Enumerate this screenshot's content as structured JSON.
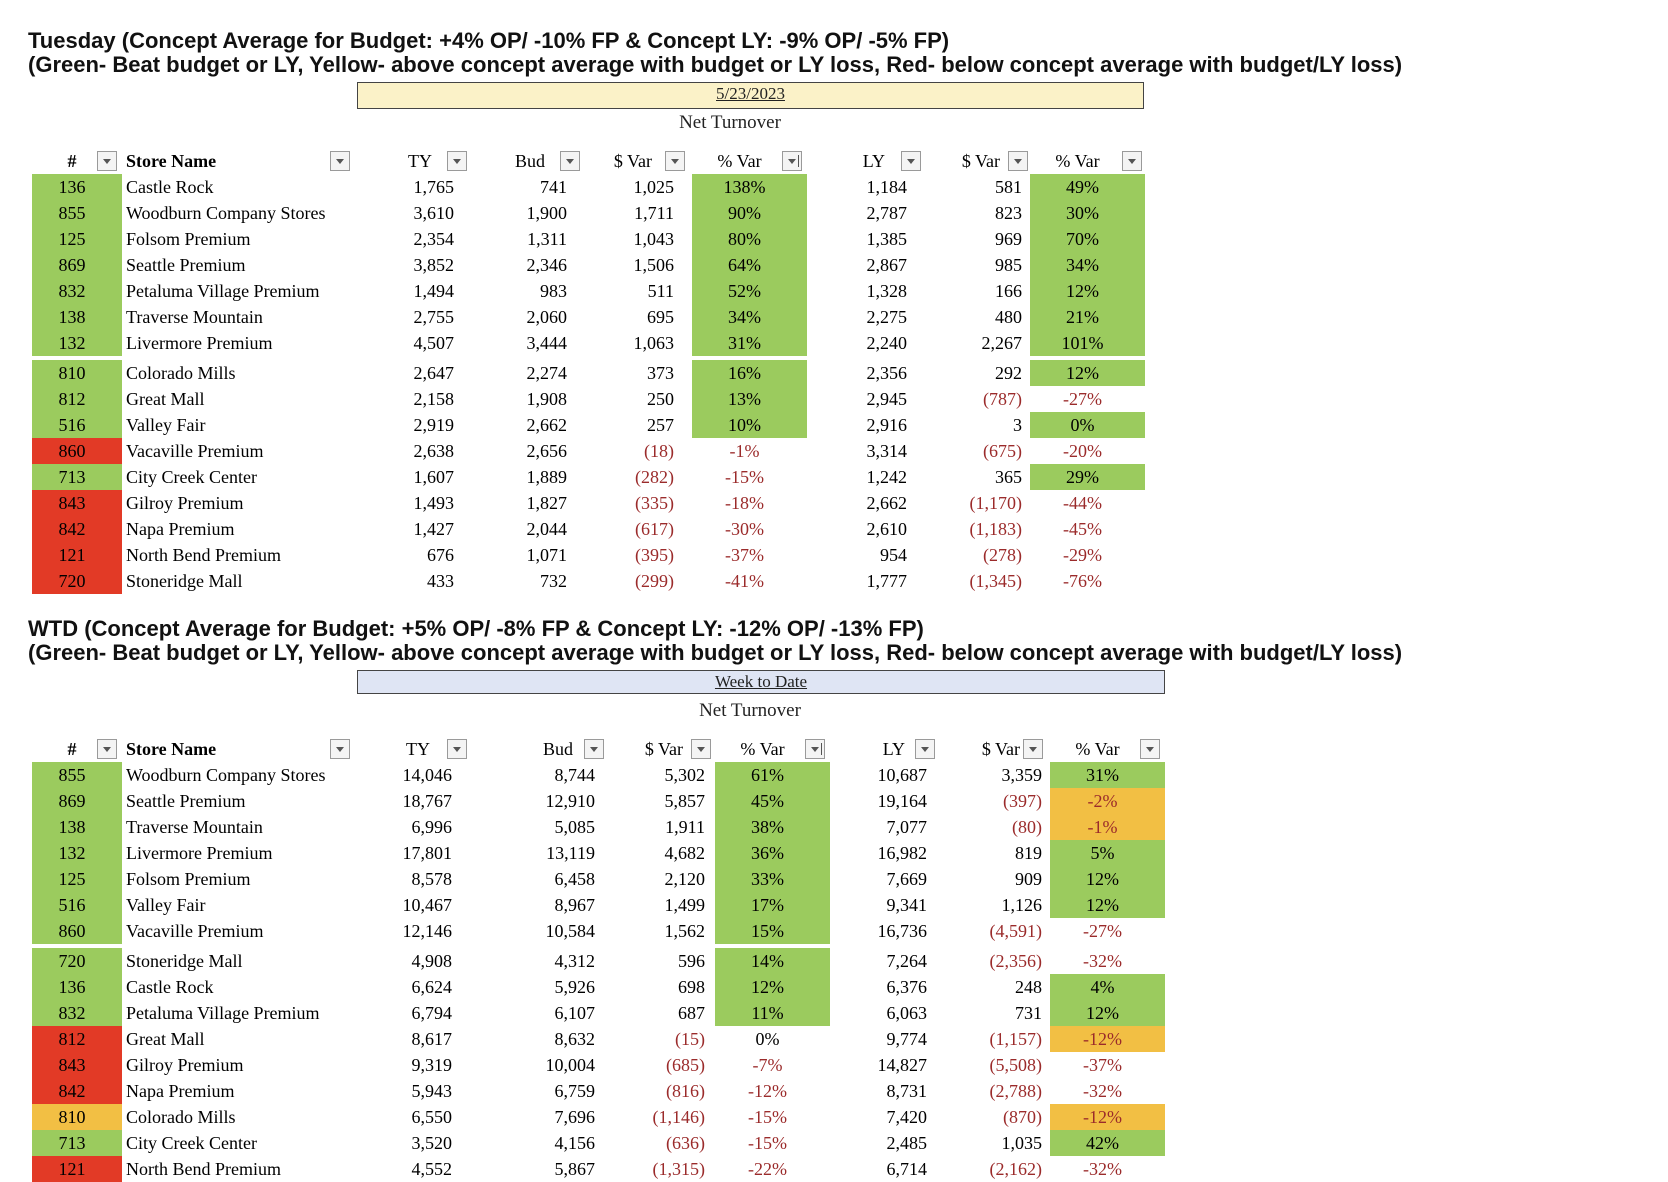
{
  "colors": {
    "green": "#9bcb5e",
    "yellow": "#f2bf44",
    "red": "#e23a26",
    "negative_text": "#9b2b2b",
    "banner_day": "#fbf2c8",
    "banner_wtd": "#dfe5f4"
  },
  "headers": {
    "num": "#",
    "store": "Store Name",
    "ty": "TY",
    "bud": "Bud",
    "dvar": "$ Var",
    "pvar": "% Var",
    "ly": "LY"
  },
  "icons": {
    "filter": "filter-dropdown-icon",
    "sort": "sort-descending-filter-icon"
  },
  "sections": [
    {
      "title1": "Tuesday (Concept Average for Budget: +4% OP/ -10% FP & Concept LY: -9% OP/ -5% FP)",
      "title2": "(Green- Beat budget or LY, Yellow- above concept average with budget or LY loss, Red- below concept average with budget/LY loss)",
      "banner": "5/23/2023",
      "subtitle": "Net Turnover",
      "rows": [
        {
          "num": "136",
          "store": "Castle Rock",
          "ty": "1,765",
          "bud": "741",
          "bvar": "1,025",
          "bpct": "138%",
          "ly": "1,184",
          "lvar": "581",
          "lpct": "49%",
          "nc": "g",
          "bc": "g",
          "lc": "g"
        },
        {
          "num": "855",
          "store": "Woodburn Company Stores",
          "ty": "3,610",
          "bud": "1,900",
          "bvar": "1,711",
          "bpct": "90%",
          "ly": "2,787",
          "lvar": "823",
          "lpct": "30%",
          "nc": "g",
          "bc": "g",
          "lc": "g"
        },
        {
          "num": "125",
          "store": "Folsom Premium",
          "ty": "2,354",
          "bud": "1,311",
          "bvar": "1,043",
          "bpct": "80%",
          "ly": "1,385",
          "lvar": "969",
          "lpct": "70%",
          "nc": "g",
          "bc": "g",
          "lc": "g"
        },
        {
          "num": "869",
          "store": "Seattle Premium",
          "ty": "3,852",
          "bud": "2,346",
          "bvar": "1,506",
          "bpct": "64%",
          "ly": "2,867",
          "lvar": "985",
          "lpct": "34%",
          "nc": "g",
          "bc": "g",
          "lc": "g"
        },
        {
          "num": "832",
          "store": "Petaluma Village Premium",
          "ty": "1,494",
          "bud": "983",
          "bvar": "511",
          "bpct": "52%",
          "ly": "1,328",
          "lvar": "166",
          "lpct": "12%",
          "nc": "g",
          "bc": "g",
          "lc": "g"
        },
        {
          "num": "138",
          "store": "Traverse Mountain",
          "ty": "2,755",
          "bud": "2,060",
          "bvar": "695",
          "bpct": "34%",
          "ly": "2,275",
          "lvar": "480",
          "lpct": "21%",
          "nc": "g",
          "bc": "g",
          "lc": "g"
        },
        {
          "num": "132",
          "store": "Livermore Premium",
          "ty": "4,507",
          "bud": "3,444",
          "bvar": "1,063",
          "bpct": "31%",
          "ly": "2,240",
          "lvar": "2,267",
          "lpct": "101%",
          "nc": "g",
          "bc": "g",
          "lc": "g"
        },
        {
          "num": "810",
          "store": "Colorado Mills",
          "ty": "2,647",
          "bud": "2,274",
          "bvar": "373",
          "bpct": "16%",
          "ly": "2,356",
          "lvar": "292",
          "lpct": "12%",
          "nc": "g",
          "bc": "g",
          "lc": "g"
        },
        {
          "num": "812",
          "store": "Great Mall",
          "ty": "2,158",
          "bud": "1,908",
          "bvar": "250",
          "bpct": "13%",
          "ly": "2,945",
          "lvar": "(787)",
          "lpct": "-27%",
          "nc": "g",
          "bc": "g",
          "lc": ""
        },
        {
          "num": "516",
          "store": "Valley Fair",
          "ty": "2,919",
          "bud": "2,662",
          "bvar": "257",
          "bpct": "10%",
          "ly": "2,916",
          "lvar": "3",
          "lpct": "0%",
          "nc": "g",
          "bc": "g",
          "lc": "g"
        },
        {
          "num": "860",
          "store": "Vacaville Premium",
          "ty": "2,638",
          "bud": "2,656",
          "bvar": "(18)",
          "bpct": "-1%",
          "ly": "3,314",
          "lvar": "(675)",
          "lpct": "-20%",
          "nc": "r",
          "bc": "",
          "lc": ""
        },
        {
          "num": "713",
          "store": "City Creek Center",
          "ty": "1,607",
          "bud": "1,889",
          "bvar": "(282)",
          "bpct": "-15%",
          "ly": "1,242",
          "lvar": "365",
          "lpct": "29%",
          "nc": "g",
          "bc": "",
          "lc": "g"
        },
        {
          "num": "843",
          "store": "Gilroy Premium",
          "ty": "1,493",
          "bud": "1,827",
          "bvar": "(335)",
          "bpct": "-18%",
          "ly": "2,662",
          "lvar": "(1,170)",
          "lpct": "-44%",
          "nc": "r",
          "bc": "",
          "lc": ""
        },
        {
          "num": "842",
          "store": "Napa Premium",
          "ty": "1,427",
          "bud": "2,044",
          "bvar": "(617)",
          "bpct": "-30%",
          "ly": "2,610",
          "lvar": "(1,183)",
          "lpct": "-45%",
          "nc": "r",
          "bc": "",
          "lc": ""
        },
        {
          "num": "121",
          "store": "North Bend Premium",
          "ty": "676",
          "bud": "1,071",
          "bvar": "(395)",
          "bpct": "-37%",
          "ly": "954",
          "lvar": "(278)",
          "lpct": "-29%",
          "nc": "r",
          "bc": "",
          "lc": ""
        },
        {
          "num": "720",
          "store": "Stoneridge Mall",
          "ty": "433",
          "bud": "732",
          "bvar": "(299)",
          "bpct": "-41%",
          "ly": "1,777",
          "lvar": "(1,345)",
          "lpct": "-76%",
          "nc": "r",
          "bc": "",
          "lc": ""
        }
      ]
    },
    {
      "title1": "WTD (Concept Average for Budget: +5% OP/ -8% FP & Concept LY: -12% OP/ -13% FP)",
      "title2": "(Green- Beat budget or LY, Yellow- above concept average with budget or LY loss, Red- below concept average with budget/LY loss)",
      "banner": "Week to Date",
      "subtitle": "Net Turnover",
      "rows": [
        {
          "num": "855",
          "store": "Woodburn Company Stores",
          "ty": "14,046",
          "bud": "8,744",
          "bvar": "5,302",
          "bpct": "61%",
          "ly": "10,687",
          "lvar": "3,359",
          "lpct": "31%",
          "nc": "g",
          "bc": "g",
          "lc": "g"
        },
        {
          "num": "869",
          "store": "Seattle Premium",
          "ty": "18,767",
          "bud": "12,910",
          "bvar": "5,857",
          "bpct": "45%",
          "ly": "19,164",
          "lvar": "(397)",
          "lpct": "-2%",
          "nc": "g",
          "bc": "g",
          "lc": "y"
        },
        {
          "num": "138",
          "store": "Traverse Mountain",
          "ty": "6,996",
          "bud": "5,085",
          "bvar": "1,911",
          "bpct": "38%",
          "ly": "7,077",
          "lvar": "(80)",
          "lpct": "-1%",
          "nc": "g",
          "bc": "g",
          "lc": "y"
        },
        {
          "num": "132",
          "store": "Livermore Premium",
          "ty": "17,801",
          "bud": "13,119",
          "bvar": "4,682",
          "bpct": "36%",
          "ly": "16,982",
          "lvar": "819",
          "lpct": "5%",
          "nc": "g",
          "bc": "g",
          "lc": "g"
        },
        {
          "num": "125",
          "store": "Folsom Premium",
          "ty": "8,578",
          "bud": "6,458",
          "bvar": "2,120",
          "bpct": "33%",
          "ly": "7,669",
          "lvar": "909",
          "lpct": "12%",
          "nc": "g",
          "bc": "g",
          "lc": "g"
        },
        {
          "num": "516",
          "store": "Valley Fair",
          "ty": "10,467",
          "bud": "8,967",
          "bvar": "1,499",
          "bpct": "17%",
          "ly": "9,341",
          "lvar": "1,126",
          "lpct": "12%",
          "nc": "g",
          "bc": "g",
          "lc": "g"
        },
        {
          "num": "860",
          "store": "Vacaville Premium",
          "ty": "12,146",
          "bud": "10,584",
          "bvar": "1,562",
          "bpct": "15%",
          "ly": "16,736",
          "lvar": "(4,591)",
          "lpct": "-27%",
          "nc": "g",
          "bc": "g",
          "lc": ""
        },
        {
          "num": "720",
          "store": "Stoneridge Mall",
          "ty": "4,908",
          "bud": "4,312",
          "bvar": "596",
          "bpct": "14%",
          "ly": "7,264",
          "lvar": "(2,356)",
          "lpct": "-32%",
          "nc": "g",
          "bc": "g",
          "lc": ""
        },
        {
          "num": "136",
          "store": "Castle Rock",
          "ty": "6,624",
          "bud": "5,926",
          "bvar": "698",
          "bpct": "12%",
          "ly": "6,376",
          "lvar": "248",
          "lpct": "4%",
          "nc": "g",
          "bc": "g",
          "lc": "g"
        },
        {
          "num": "832",
          "store": "Petaluma Village Premium",
          "ty": "6,794",
          "bud": "6,107",
          "bvar": "687",
          "bpct": "11%",
          "ly": "6,063",
          "lvar": "731",
          "lpct": "12%",
          "nc": "g",
          "bc": "g",
          "lc": "g"
        },
        {
          "num": "812",
          "store": "Great Mall",
          "ty": "8,617",
          "bud": "8,632",
          "bvar": "(15)",
          "bpct": "0%",
          "ly": "9,774",
          "lvar": "(1,157)",
          "lpct": "-12%",
          "nc": "r",
          "bc": "",
          "lc": "y"
        },
        {
          "num": "843",
          "store": "Gilroy Premium",
          "ty": "9,319",
          "bud": "10,004",
          "bvar": "(685)",
          "bpct": "-7%",
          "ly": "14,827",
          "lvar": "(5,508)",
          "lpct": "-37%",
          "nc": "r",
          "bc": "",
          "lc": ""
        },
        {
          "num": "842",
          "store": "Napa Premium",
          "ty": "5,943",
          "bud": "6,759",
          "bvar": "(816)",
          "bpct": "-12%",
          "ly": "8,731",
          "lvar": "(2,788)",
          "lpct": "-32%",
          "nc": "r",
          "bc": "",
          "lc": ""
        },
        {
          "num": "810",
          "store": "Colorado Mills",
          "ty": "6,550",
          "bud": "7,696",
          "bvar": "(1,146)",
          "bpct": "-15%",
          "ly": "7,420",
          "lvar": "(870)",
          "lpct": "-12%",
          "nc": "y",
          "bc": "",
          "lc": "y"
        },
        {
          "num": "713",
          "store": "City Creek Center",
          "ty": "3,520",
          "bud": "4,156",
          "bvar": "(636)",
          "bpct": "-15%",
          "ly": "2,485",
          "lvar": "1,035",
          "lpct": "42%",
          "nc": "g",
          "bc": "",
          "lc": "g"
        },
        {
          "num": "121",
          "store": "North Bend Premium",
          "ty": "4,552",
          "bud": "5,867",
          "bvar": "(1,315)",
          "bpct": "-22%",
          "ly": "6,714",
          "lvar": "(2,162)",
          "lpct": "-32%",
          "nc": "r",
          "bc": "",
          "lc": ""
        }
      ]
    }
  ]
}
